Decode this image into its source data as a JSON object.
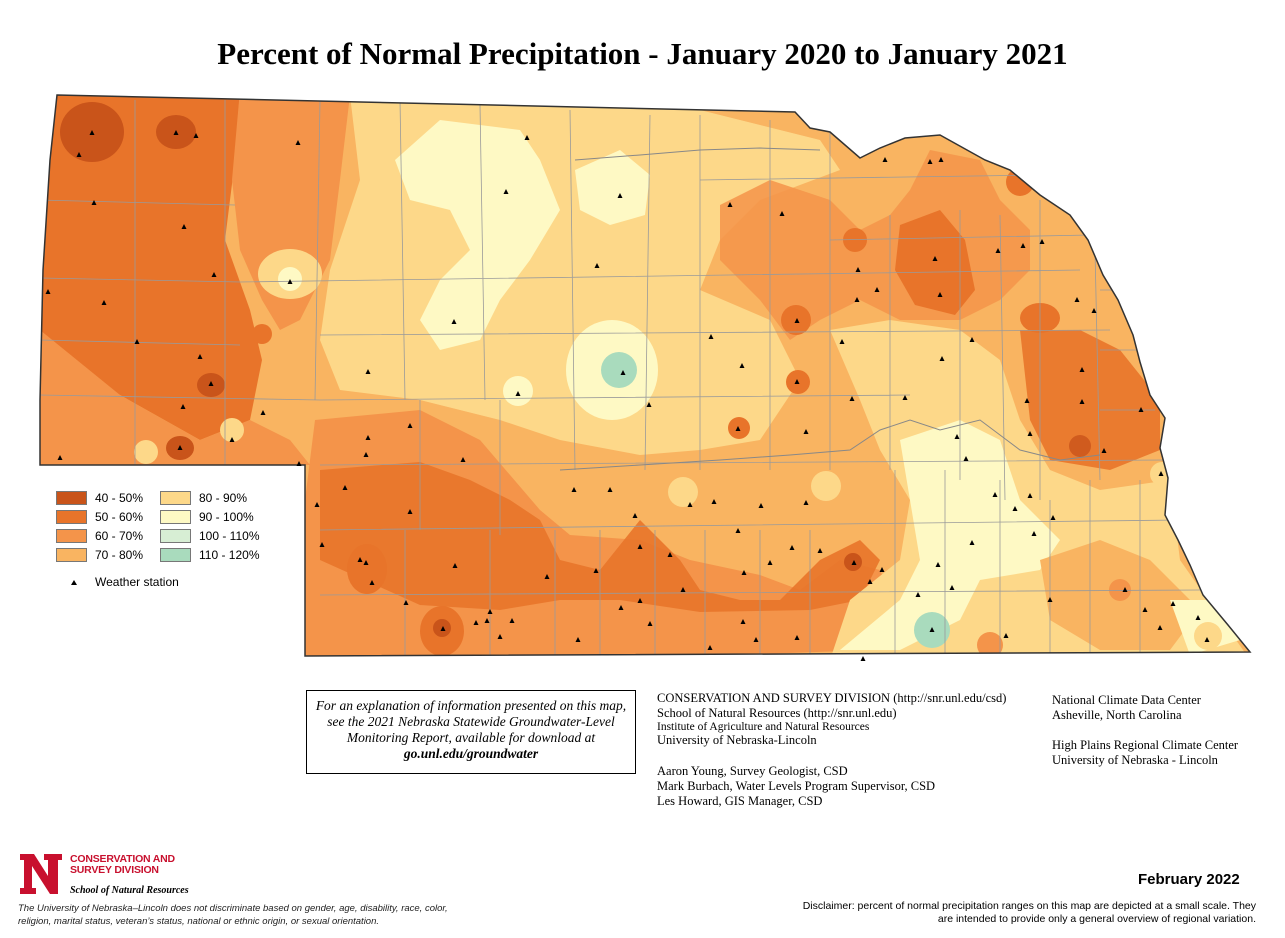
{
  "title": "Percent of Normal Precipitation - January 2020 to January 2021",
  "legend": {
    "items": [
      {
        "label": "40 - 50%",
        "color": "#c9541a"
      },
      {
        "label": "50 - 60%",
        "color": "#e8742a"
      },
      {
        "label": "60 - 70%",
        "color": "#f4944a"
      },
      {
        "label": "70 - 80%",
        "color": "#f9b461"
      },
      {
        "label": "80 - 90%",
        "color": "#fdd889"
      },
      {
        "label": "90 - 100%",
        "color": "#fef9c4"
      },
      {
        "label": "100 - 110%",
        "color": "#d7eed4"
      },
      {
        "label": "110 - 120%",
        "color": "#a9dbbd"
      }
    ],
    "station_label": "Weather station"
  },
  "info_box": {
    "text": "For an explanation of information presented on this map, see the 2021 Nebraska Statewide Groundwater-Level Monitoring Report, available for download at",
    "url": "go.unl.edu/groundwater"
  },
  "credits": {
    "org1": "CONSERVATION AND SURVEY DIVISION (http://snr.unl.edu/csd)",
    "org2": "School of Natural Resources (http://snr.unl.edu)",
    "org3": "Institute of Agriculture and Natural Resources",
    "org4": "University of Nebraska-Lincoln",
    "person1": "Aaron Young, Survey Geologist, CSD",
    "person2": "Mark Burbach, Water Levels Program Supervisor, CSD",
    "person3": "Les Howard, GIS Manager, CSD"
  },
  "sources": {
    "s1": "National Climate Data Center",
    "s2": "Asheville, North Carolina",
    "s3": "High Plains Regional Climate Center",
    "s4": "University of Nebraska - Lincoln"
  },
  "logo": {
    "line1": "CONSERVATION AND",
    "line2": "SURVEY DIVISION",
    "line3": "School of Natural Resources"
  },
  "nondiscrimination": "The University of Nebraska–Lincoln does not discriminate based on gender, age, disability, race, color, religion, marital status, veteran’s status, national or ethnic origin, or sexual orientation.",
  "date": "February 2022",
  "disclaimer": "Disclaimer: percent of normal precipitation ranges on this map are depicted at a small scale.  They are intended to provide only a general overview of regional variation.",
  "colors": {
    "border": "#444444",
    "county_line": "#9a9a9a"
  }
}
